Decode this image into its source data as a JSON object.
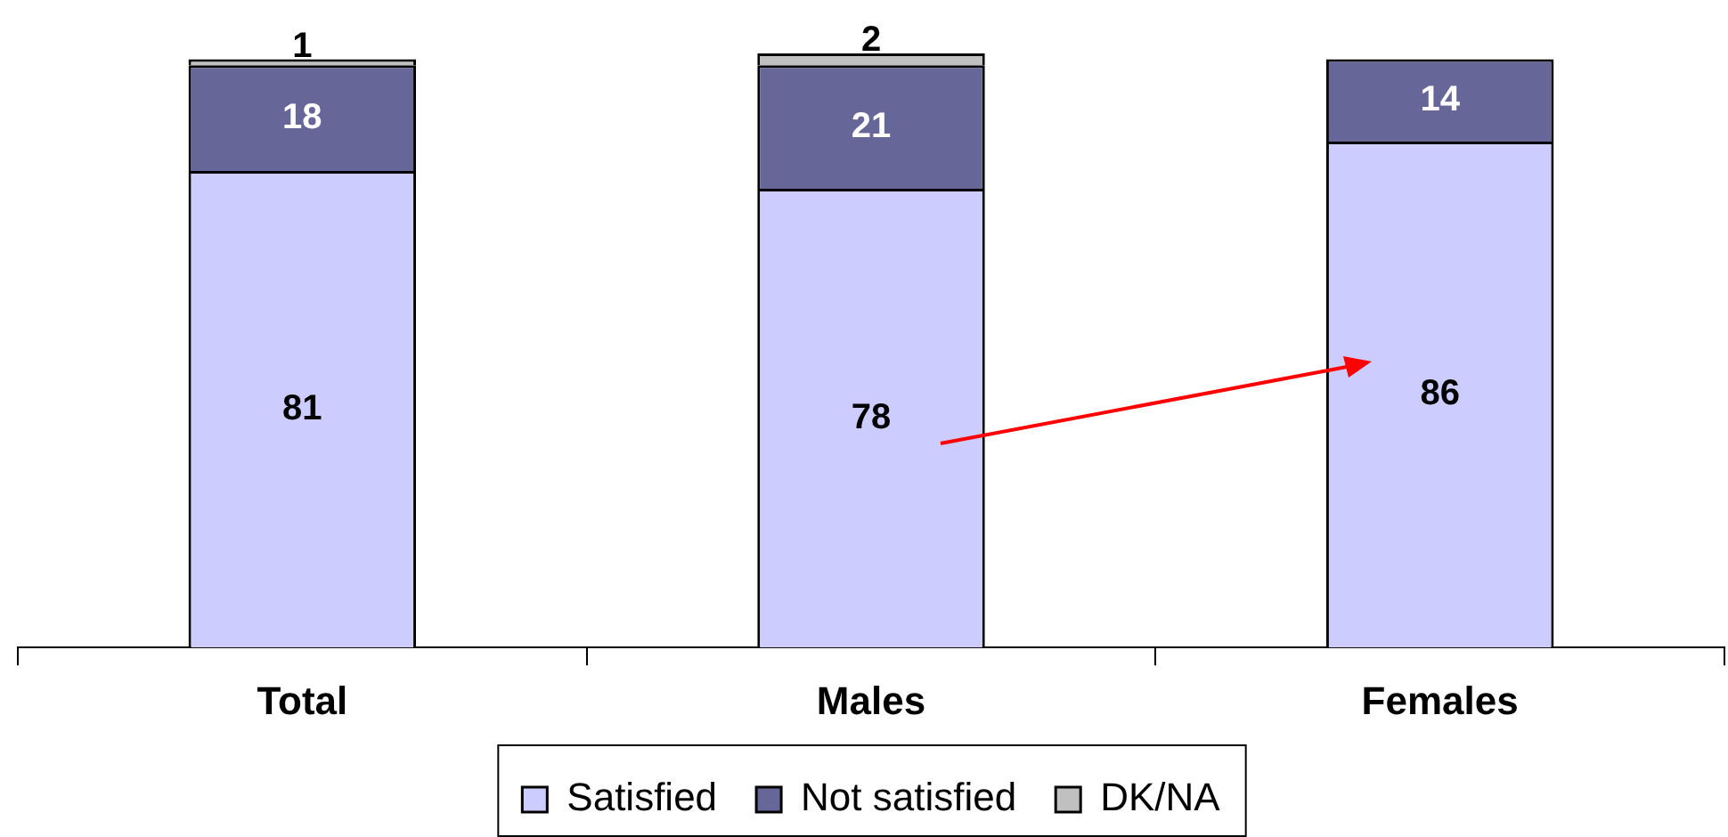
{
  "chart_data": {
    "type": "bar",
    "stacked": true,
    "categories": [
      "Total",
      "Males",
      "Females"
    ],
    "series": [
      {
        "name": "Satisfied",
        "color": "#ccccff",
        "values": [
          81,
          78,
          86
        ]
      },
      {
        "name": "Not satisfied",
        "color": "#666699",
        "values": [
          18,
          21,
          14
        ]
      },
      {
        "name": "DK/NA",
        "color": "#c0c0c0",
        "values": [
          1,
          2,
          null
        ]
      }
    ],
    "data_labels": true,
    "legend": "bottom",
    "grid": false,
    "tick_labels": "x"
  }
}
